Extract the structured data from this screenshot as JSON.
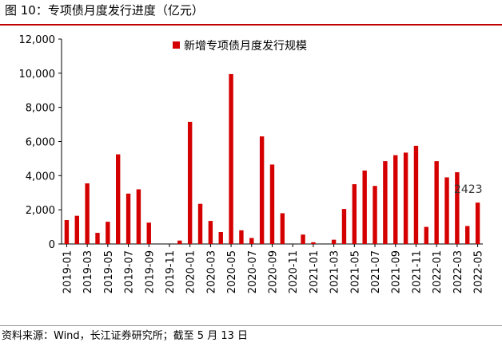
{
  "figure_title": "图 10：专项债月度发行进度（亿元）",
  "source_note": "资料来源：Wind，长江证券研究所；截至 5 月 13 日",
  "colors": {
    "bar": "#d40000",
    "axis": "#000000",
    "title_rule": "#c00000"
  },
  "chart_data": {
    "type": "bar",
    "title": "",
    "xlabel": "",
    "ylabel": "",
    "ylim": [
      0,
      12000
    ],
    "yticks": [
      0,
      2000,
      4000,
      6000,
      8000,
      10000,
      12000
    ],
    "ytick_labels": [
      "0",
      "2,000",
      "4,000",
      "6,000",
      "8,000",
      "10,000",
      "12,000"
    ],
    "grid": false,
    "legend_position": "top-center",
    "categories": [
      "2019-01",
      "2019-02",
      "2019-03",
      "2019-04",
      "2019-05",
      "2019-06",
      "2019-07",
      "2019-08",
      "2019-09",
      "2019-10",
      "2019-11",
      "2019-12",
      "2020-01",
      "2020-02",
      "2020-03",
      "2020-04",
      "2020-05",
      "2020-06",
      "2020-07",
      "2020-08",
      "2020-09",
      "2020-10",
      "2020-11",
      "2020-12",
      "2021-01",
      "2021-02",
      "2021-03",
      "2021-04",
      "2021-05",
      "2021-06",
      "2021-07",
      "2021-08",
      "2021-09",
      "2021-10",
      "2021-11",
      "2021-12",
      "2022-01",
      "2022-02",
      "2022-03",
      "2022-04",
      "2022-05"
    ],
    "xtick_labels": [
      "2019-01",
      "",
      "2019-03",
      "",
      "2019-05",
      "",
      "2019-07",
      "",
      "2019-09",
      "",
      "2019-11",
      "",
      "2020-01",
      "",
      "2020-03",
      "",
      "2020-05",
      "",
      "2020-07",
      "",
      "2020-09",
      "",
      "2020-11",
      "",
      "2021-01",
      "",
      "2021-03",
      "",
      "2021-05",
      "",
      "2021-07",
      "",
      "2021-09",
      "",
      "2021-11",
      "",
      "2022-01",
      "",
      "2022-03",
      "",
      "2022-05"
    ],
    "series": [
      {
        "name": "新增专项债月度发行规模",
        "values": [
          1400,
          1650,
          3550,
          650,
          1300,
          5250,
          2950,
          3200,
          1250,
          0,
          0,
          200,
          7150,
          2350,
          1350,
          700,
          9950,
          800,
          350,
          6300,
          4650,
          1800,
          0,
          550,
          100,
          0,
          250,
          2050,
          3500,
          4300,
          3400,
          4850,
          5200,
          5350,
          5750,
          1000,
          4850,
          3900,
          4200,
          1050,
          2423
        ]
      }
    ],
    "annotations": [
      {
        "category": "2022-05",
        "text": "2423"
      }
    ]
  }
}
